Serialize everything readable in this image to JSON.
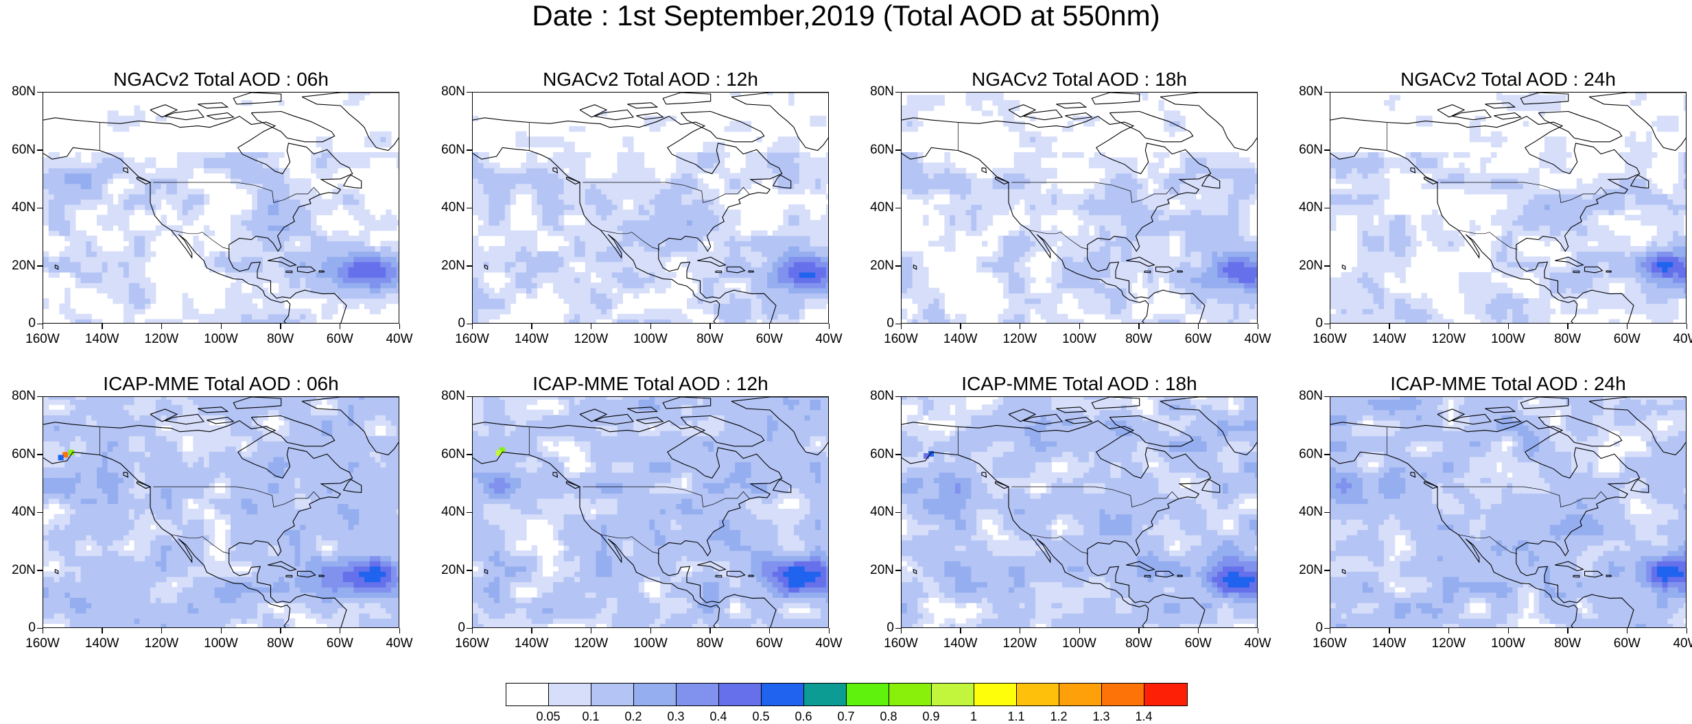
{
  "figure": {
    "title": "Date : 1st September,2019 (Total AOD at 550nm)"
  },
  "axes": {
    "lat_ticks": [
      "80N",
      "60N",
      "40N",
      "20N",
      "0"
    ],
    "lon_ticks": [
      "160W",
      "140W",
      "120W",
      "100W",
      "80W",
      "60W",
      "40W"
    ],
    "lat_range": [
      0,
      80
    ],
    "lon_range": [
      -160,
      -40
    ]
  },
  "panels": [
    {
      "title": "NGACv2 Total AOD : 06h",
      "model": "NGACv2",
      "hour": "06h"
    },
    {
      "title": "NGACv2 Total AOD : 12h",
      "model": "NGACv2",
      "hour": "12h"
    },
    {
      "title": "NGACv2 Total AOD : 18h",
      "model": "NGACv2",
      "hour": "18h"
    },
    {
      "title": "NGACv2 Total AOD : 24h",
      "model": "NGACv2",
      "hour": "24h"
    },
    {
      "title": "ICAP-MME Total AOD : 06h",
      "model": "ICAP-MME",
      "hour": "06h"
    },
    {
      "title": "ICAP-MME Total AOD : 12h",
      "model": "ICAP-MME",
      "hour": "12h"
    },
    {
      "title": "ICAP-MME Total AOD : 18h",
      "model": "ICAP-MME",
      "hour": "18h"
    },
    {
      "title": "ICAP-MME Total AOD : 24h",
      "model": "ICAP-MME",
      "hour": "24h"
    }
  ],
  "colorbar": {
    "labels": [
      "0.05",
      "0.1",
      "0.2",
      "0.3",
      "0.4",
      "0.5",
      "0.6",
      "0.7",
      "0.8",
      "0.9",
      "1",
      "1.1",
      "1.2",
      "1.3",
      "1.4"
    ],
    "colors": [
      "#ffffff",
      "#d6defa",
      "#b4c4f4",
      "#95aef0",
      "#8092ee",
      "#6670ea",
      "#1f63ee",
      "#0c9c94",
      "#5ef20c",
      "#88f00a",
      "#c2f63c",
      "#fefe0a",
      "#fec00a",
      "#fea00a",
      "#fe7308",
      "#fe2006"
    ]
  }
}
